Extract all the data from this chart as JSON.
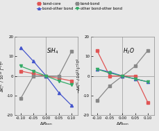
{
  "SiH4": {
    "x": [
      -0.1,
      -0.05,
      0.0,
      0.05,
      0.1
    ],
    "bond_core": [
      2.5,
      1.2,
      0.0,
      -1.2,
      -2.5
    ],
    "bond_bond": [
      -11.5,
      0.0,
      0.0,
      0.0,
      12.5
    ],
    "bond_other_bond": [
      14.5,
      7.5,
      0.0,
      -8.5,
      -15.0
    ],
    "other_bond_other_bond": [
      5.0,
      2.5,
      0.0,
      -2.5,
      -4.5
    ],
    "label": "SiH$_4$"
  },
  "H2O": {
    "x": [
      -0.1,
      -0.05,
      0.0,
      0.05,
      0.1
    ],
    "bond_core": [
      13.0,
      0.0,
      0.0,
      0.0,
      -13.5
    ],
    "bond_bond": [
      -12.5,
      -5.0,
      0.0,
      5.0,
      13.0
    ],
    "bond_other_bond": [
      3.5,
      2.0,
      0.0,
      -1.5,
      -3.0
    ],
    "other_bond_other_bond": [
      3.5,
      1.5,
      0.0,
      -1.5,
      -3.0
    ],
    "label": "H$_2$O"
  },
  "colors": {
    "bond_core": "#e05555",
    "bond_bond": "#888888",
    "bond_other_bond": "#4455cc",
    "other_bond_other_bond": "#33aa66"
  },
  "ylim": [
    -20,
    20
  ],
  "xlim": [
    -0.125,
    0.125
  ],
  "xticks": [
    -0.1,
    -0.05,
    0.0,
    0.05,
    0.1
  ],
  "yticks": [
    -20,
    -10,
    0,
    10,
    20
  ],
  "background_color": "#e8e8e8"
}
